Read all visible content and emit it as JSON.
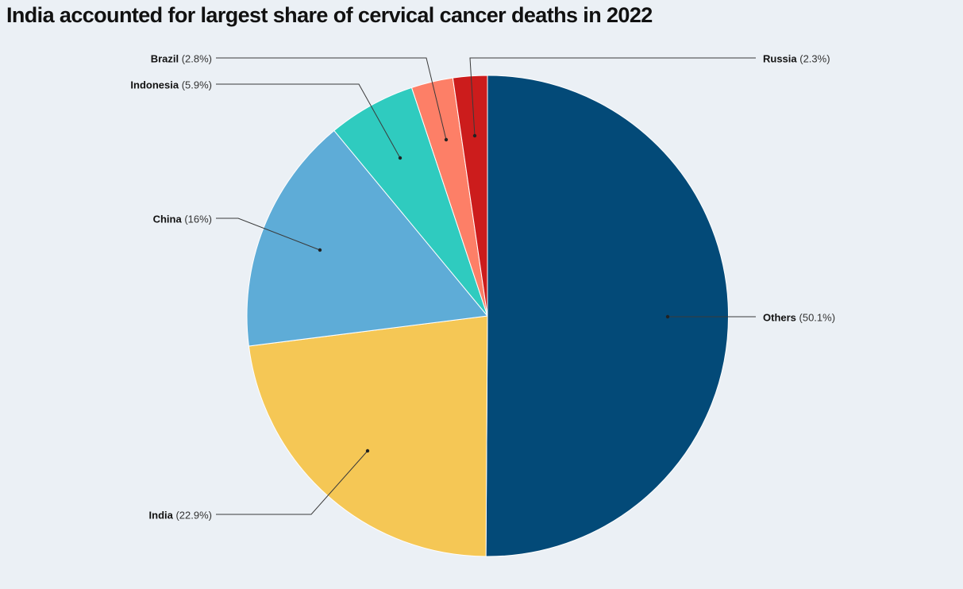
{
  "title": "India accounted for largest share of cervical cancer deaths in 2022",
  "chart_data": {
    "type": "pie",
    "title": "India accounted for largest share of cervical cancer deaths in 2022",
    "slices": [
      {
        "label": "Others",
        "value": 50.1,
        "pct_text": "(50.1%)",
        "color": "#034a78"
      },
      {
        "label": "India",
        "value": 22.9,
        "pct_text": "(22.9%)",
        "color": "#f5c755"
      },
      {
        "label": "China",
        "value": 16,
        "pct_text": "(16%)",
        "color": "#5eacd7"
      },
      {
        "label": "Indonesia",
        "value": 5.9,
        "pct_text": "(5.9%)",
        "color": "#2fcbbf"
      },
      {
        "label": "Brazil",
        "value": 2.8,
        "pct_text": "(2.8%)",
        "color": "#fd7f67"
      },
      {
        "label": "Russia",
        "value": 2.3,
        "pct_text": "(2.3%)",
        "color": "#cc1c1c"
      }
    ]
  }
}
